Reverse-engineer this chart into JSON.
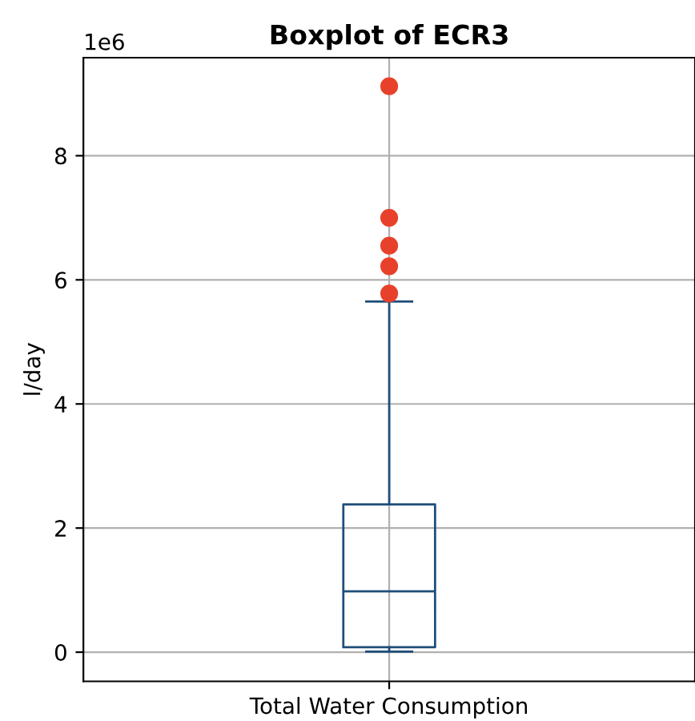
{
  "chart_data": {
    "type": "box",
    "title": "Boxplot of ECR3",
    "ylabel": "l/day",
    "categories": [
      "Total Water Consumption"
    ],
    "boxes": [
      {
        "low": 0.01,
        "q1": 0.08,
        "median": 0.98,
        "q3": 2.38,
        "high": 5.65,
        "outliers": [
          5.78,
          6.22,
          6.55,
          7.0,
          9.12
        ]
      }
    ],
    "color": "#1f4e79",
    "ylim": [
      -0.47,
      9.58
    ],
    "yticks": [
      0,
      2,
      4,
      6,
      8
    ],
    "annotations": [
      "1e6"
    ],
    "grid": true,
    "marker": "circle"
  }
}
